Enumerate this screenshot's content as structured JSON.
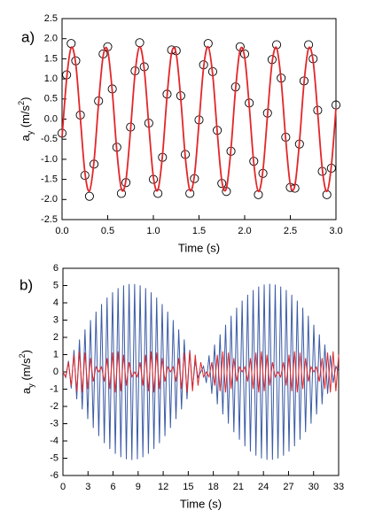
{
  "chart_data": [
    {
      "type": "line",
      "label": "a)",
      "xlabel": "Time (s)",
      "ylabel": [
        "a",
        "y",
        " (m/s",
        "2",
        ")"
      ],
      "xlim": [
        0,
        3
      ],
      "ylim": [
        -2.5,
        2.5
      ],
      "xticks": [
        {
          "value": 0,
          "label": "0.0"
        },
        0.5,
        {
          "value": 1,
          "label": "1.0"
        },
        1.5,
        {
          "value": 2,
          "label": "2.0"
        },
        2.5,
        {
          "value": 3,
          "label": "3.0"
        }
      ],
      "yticks": [
        -2.5,
        {
          "value": -2,
          "label": "-2.0"
        },
        -1.5,
        {
          "value": -1,
          "label": "-1.0"
        },
        -0.5,
        {
          "value": 0,
          "label": "0.0"
        },
        0.5,
        {
          "value": 1,
          "label": "1.0"
        },
        1.5,
        {
          "value": 2,
          "label": "2.0"
        },
        2.5
      ],
      "x": [
        0,
        0.05,
        0.1,
        0.15,
        0.2,
        0.25,
        0.3,
        0.35,
        0.4,
        0.45,
        0.5,
        0.55,
        0.6,
        0.65,
        0.7,
        0.75,
        0.8,
        0.85,
        0.9,
        0.95,
        1,
        1.05,
        1.1,
        1.15,
        1.2,
        1.25,
        1.3,
        1.35,
        1.4,
        1.45,
        1.5,
        1.55,
        1.6,
        1.65,
        1.7,
        1.75,
        1.8,
        1.85,
        1.9,
        1.95,
        2,
        2.05,
        2.1,
        2.15,
        2.2,
        2.25,
        2.3,
        2.35,
        2.4,
        2.45,
        2.5,
        2.55,
        2.6,
        2.65,
        2.7,
        2.75,
        2.8,
        2.85,
        2.9,
        2.95,
        3
      ],
      "series": [
        {
          "mode": "markers",
          "color": "#000000",
          "values": [
            -0.35,
            1.1,
            1.88,
            1.45,
            0.1,
            -1.4,
            -1.92,
            -1.12,
            0.45,
            1.62,
            1.8,
            0.75,
            -0.7,
            -1.85,
            -1.58,
            -0.2,
            1.2,
            1.9,
            1.3,
            -0.1,
            -1.5,
            -1.85,
            -0.95,
            0.62,
            1.72,
            1.7,
            0.58,
            -0.88,
            -1.85,
            -1.48,
            -0.02,
            1.35,
            1.88,
            1.18,
            -0.28,
            -1.6,
            -1.8,
            -0.8,
            0.8,
            1.8,
            1.62,
            0.4,
            -1.05,
            -1.88,
            -1.35,
            0.15,
            1.48,
            1.85,
            1.02,
            -0.45,
            -1.7,
            -1.72,
            -0.62,
            0.95,
            1.85,
            1.5,
            0.22,
            -1.3,
            -1.88,
            -1.22,
            0.35
          ]
        },
        {
          "mode": "smooth",
          "color": "#e3262a",
          "values": [
            -0.45,
            1.0,
            1.78,
            1.37,
            0.03,
            -1.32,
            -1.79,
            -1.05,
            0.39,
            1.57,
            1.7,
            0.69,
            -0.79,
            -1.74,
            -1.51,
            -0.27,
            1.15,
            1.8,
            1.24,
            -0.15,
            -1.44,
            -1.76,
            -0.9,
            0.57,
            1.65,
            1.63,
            0.51,
            -0.95,
            -1.77,
            -1.4,
            -0.09,
            1.28,
            1.8,
            1.1,
            -0.33,
            -1.54,
            -1.72,
            -0.74,
            0.74,
            1.72,
            1.54,
            0.33,
            -1.1,
            -1.8,
            -1.28,
            0.09,
            1.4,
            1.77,
            0.95,
            -0.51,
            -1.63,
            -1.65,
            -0.57,
            0.9,
            1.76,
            1.44,
            0.15,
            -1.24,
            -1.8,
            -1.15,
            0.27
          ]
        }
      ]
    },
    {
      "type": "line",
      "label": "b)",
      "xlabel": "Time (s)",
      "ylabel": [
        "a",
        "y",
        " (m/s",
        "2",
        ")"
      ],
      "xlim": [
        0,
        33
      ],
      "ylim": [
        -6,
        6
      ],
      "xticks": [
        0,
        3,
        6,
        9,
        12,
        15,
        18,
        21,
        24,
        27,
        30,
        33
      ],
      "yticks": [
        -6,
        -5,
        -4,
        -3,
        -2,
        -1,
        0,
        1,
        2,
        3,
        4,
        5,
        6
      ],
      "x": [
        0,
        0.33,
        0.66,
        0.99,
        1.32,
        1.65,
        1.98,
        2.31,
        2.64,
        2.97,
        3.3,
        3.63,
        3.96,
        4.29,
        4.62,
        4.95,
        5.28,
        5.61,
        5.94,
        6.27,
        6.6,
        6.93,
        7.26,
        7.59,
        7.92,
        8.25,
        8.58,
        8.91,
        9.24,
        9.57,
        9.9,
        10.23,
        10.56,
        10.89,
        11.22,
        11.55,
        11.88,
        12.21,
        12.54,
        12.87,
        13.2,
        13.53,
        13.86,
        14.19,
        14.52,
        14.85,
        15.18,
        15.51,
        15.84,
        16.17,
        16.5,
        16.83,
        17.16,
        17.49,
        17.82,
        18.15,
        18.48,
        18.81,
        19.14,
        19.47,
        19.8,
        20.13,
        20.46,
        20.79,
        21.12,
        21.45,
        21.78,
        22.11,
        22.44,
        22.77,
        23.1,
        23.43,
        23.76,
        24.09,
        24.42,
        24.75,
        25.08,
        25.41,
        25.74,
        26.07,
        26.4,
        26.73,
        27.06,
        27.39,
        27.72,
        28.05,
        28.38,
        28.71,
        29.04,
        29.37,
        29.7,
        30.03,
        30.36,
        30.69,
        31.02,
        31.35,
        31.68,
        32.01,
        32.34,
        32.67,
        33
      ],
      "series": [
        {
          "mode": "lines",
          "color": "#3b5ba6",
          "values": [
            0,
            -0.32,
            0.64,
            -0.96,
            1.27,
            -1.58,
            1.88,
            -2.17,
            2.46,
            -2.73,
            3.0,
            -3.25,
            3.49,
            -3.72,
            3.93,
            -4.13,
            4.31,
            -4.47,
            4.61,
            -4.74,
            4.85,
            -4.94,
            5.01,
            -5.06,
            5.09,
            -5.1,
            5.09,
            -5.06,
            5.01,
            -4.94,
            4.85,
            -4.74,
            4.61,
            -4.47,
            4.31,
            -4.13,
            3.93,
            -3.72,
            3.49,
            -3.25,
            3.0,
            -2.73,
            2.46,
            -2.17,
            1.88,
            -1.58,
            1.27,
            -0.96,
            0.64,
            -0.32,
            0,
            0.32,
            -0.64,
            0.96,
            -1.27,
            1.58,
            -1.88,
            2.17,
            -2.46,
            2.73,
            -3.0,
            3.25,
            -3.49,
            3.72,
            -3.93,
            4.13,
            -4.31,
            4.47,
            -4.61,
            4.74,
            -4.85,
            4.94,
            -5.01,
            5.06,
            -5.09,
            5.1,
            -5.09,
            5.06,
            -5.01,
            4.94,
            -4.85,
            4.74,
            -4.61,
            4.47,
            -4.31,
            4.13,
            -3.93,
            3.72,
            -3.49,
            3.25,
            -3.0,
            2.73,
            -2.46,
            2.17,
            -1.88,
            1.58,
            -1.27,
            0.96,
            -0.64,
            0.32,
            0
          ]
        },
        {
          "mode": "lines",
          "color": "#e3262a",
          "values": [
            0,
            -0.29,
            0.56,
            -0.8,
            0.99,
            -1.12,
            1.19,
            -1.19,
            1.12,
            -0.99,
            0.8,
            -0.56,
            0.29,
            0,
            0.29,
            -0.56,
            0.8,
            -0.99,
            1.12,
            -1.19,
            1.19,
            -1.12,
            0.99,
            -0.8,
            0.56,
            -0.29,
            0,
            -0.29,
            0.56,
            -0.8,
            0.99,
            -1.12,
            1.19,
            -1.19,
            1.12,
            -0.99,
            0.8,
            -0.56,
            0.29,
            0,
            0.29,
            -0.56,
            0.8,
            -0.99,
            1.12,
            -1.19,
            1.19,
            -1.12,
            0.99,
            -0.8,
            0.56,
            -0.29,
            0,
            -0.29,
            0.56,
            -0.8,
            0.99,
            -1.12,
            1.19,
            -1.19,
            1.12,
            -0.99,
            0.8,
            -0.56,
            0.29,
            0,
            0.29,
            -0.56,
            0.8,
            -0.99,
            1.12,
            -1.19,
            1.19,
            -1.12,
            0.99,
            -0.8,
            0.56,
            -0.29,
            0,
            -0.29,
            0.56,
            -0.8,
            0.99,
            -1.12,
            1.19,
            -1.19,
            1.12,
            -0.99,
            0.8,
            -0.56,
            0.29,
            0,
            0.29,
            -0.56,
            0.8,
            -0.99,
            1.12,
            -1.19,
            1.19,
            -1.12,
            0.99
          ]
        }
      ]
    }
  ]
}
